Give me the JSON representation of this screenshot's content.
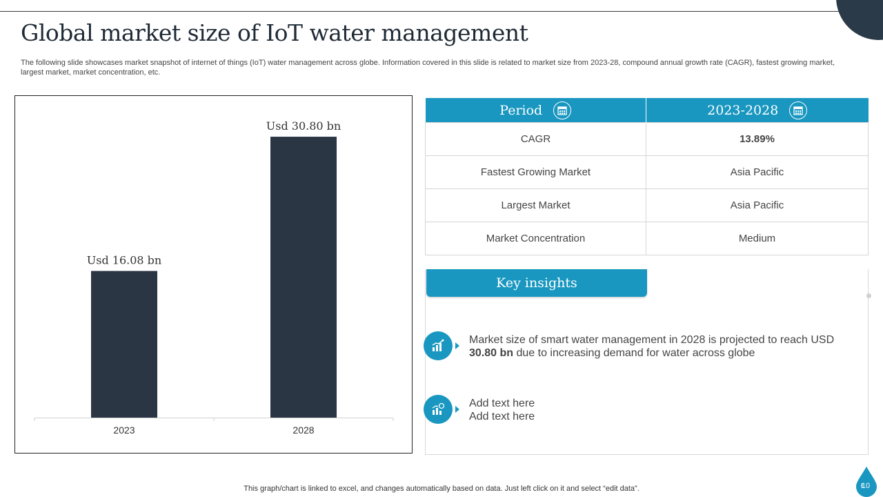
{
  "slide": {
    "title": "Global market size of IoT water management",
    "subtitle": "The following slide showcases market snapshot of internet of things (IoT) water management across globe. Information covered in this slide is related to market size from 2023-28, compound annual growth rate (CAGR), fastest growing market, largest market, market concentration, etc.",
    "footer_note": "This graph/chart is linked to excel,  and changes automatically based on data. Just left click on it and select “edit data”.",
    "page_number": "10"
  },
  "chart_data": {
    "type": "bar",
    "categories": [
      "2023",
      "2028"
    ],
    "values": [
      16.08,
      30.8
    ],
    "data_labels": [
      "Usd 16.08 bn",
      "Usd 30.80 bn"
    ],
    "ylim": [
      0,
      33
    ],
    "grid": false,
    "bar_color": "#2b3645"
  },
  "table": {
    "headers": [
      "Period",
      "2023-2028"
    ],
    "header_icons": [
      "calendar-icon",
      "calendar-icon"
    ],
    "rows": [
      [
        "CAGR",
        "13.89%"
      ],
      [
        "Fastest Growing Market",
        "Asia Pacific"
      ],
      [
        "Largest Market",
        "Asia Pacific"
      ],
      [
        "Market Concentration",
        "Medium"
      ]
    ]
  },
  "insights": {
    "heading": "Key insights",
    "items": [
      {
        "icon": "growth-chart-icon",
        "text_before": "Market size of smart water management in 2028 is projected to reach USD ",
        "text_bold": "30.80 bn",
        "text_after": " due to increasing demand for water across globe"
      },
      {
        "icon": "bar-chart-money-icon",
        "line1": "Add text here",
        "line2": "Add text here"
      }
    ]
  },
  "colors": {
    "accent": "#1997c0",
    "dark": "#2b3a48"
  }
}
